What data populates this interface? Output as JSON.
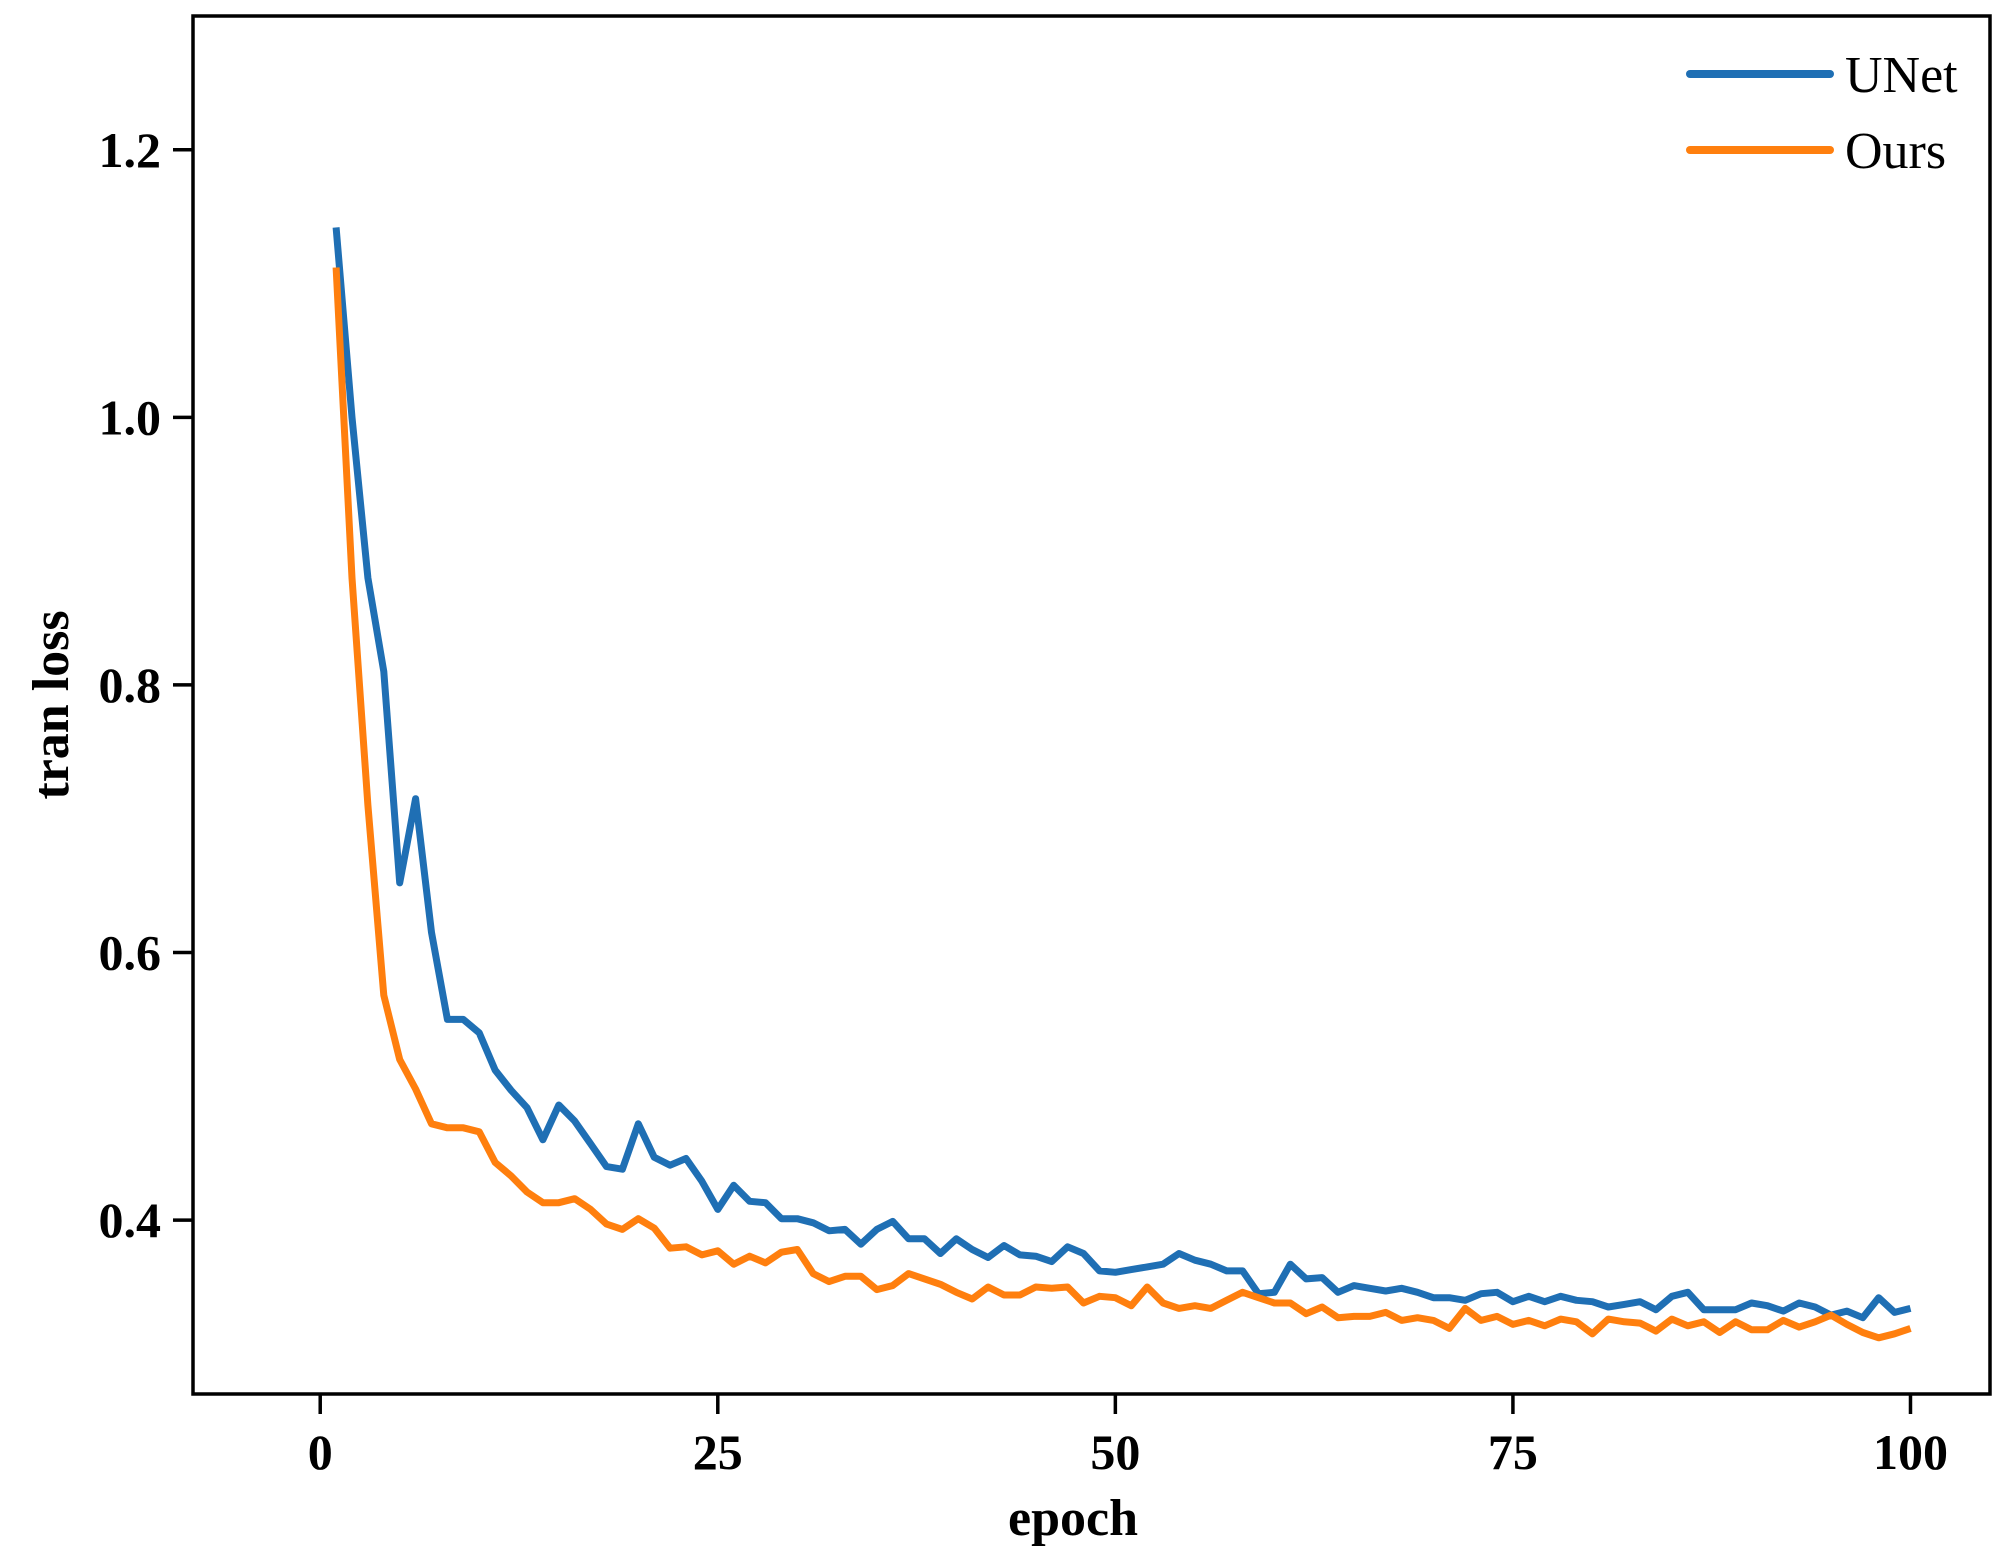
{
  "chart_data": {
    "type": "line",
    "xlabel": "epoch",
    "ylabel": "tran loss",
    "xlim": [
      -8,
      105
    ],
    "ylim": [
      0.27,
      1.3
    ],
    "xticks": [
      0,
      25,
      50,
      75,
      100
    ],
    "xtick_labels": [
      "0",
      "25",
      "50",
      "75",
      "100"
    ],
    "yticks": [
      0.4,
      0.6,
      0.8,
      1.0,
      1.2
    ],
    "ytick_labels": [
      "0.4",
      "0.6",
      "0.8",
      "1.0",
      "1.2"
    ],
    "grid": false,
    "legend": "top-right",
    "x": [
      1,
      2,
      3,
      4,
      5,
      6,
      7,
      8,
      9,
      10,
      11,
      12,
      13,
      14,
      15,
      16,
      17,
      18,
      19,
      20,
      21,
      22,
      23,
      24,
      25,
      26,
      27,
      28,
      29,
      30,
      31,
      32,
      33,
      34,
      35,
      36,
      37,
      38,
      39,
      40,
      41,
      42,
      43,
      44,
      45,
      46,
      47,
      48,
      49,
      50,
      51,
      52,
      53,
      54,
      55,
      56,
      57,
      58,
      59,
      60,
      61,
      62,
      63,
      64,
      65,
      66,
      67,
      68,
      69,
      70,
      71,
      72,
      73,
      74,
      75,
      76,
      77,
      78,
      79,
      80,
      81,
      82,
      83,
      84,
      85,
      86,
      87,
      88,
      89,
      90,
      91,
      92,
      93,
      94,
      95,
      96,
      97,
      98,
      99,
      100
    ],
    "series": [
      {
        "name": "UNet",
        "color": "#1f6fb4",
        "values": [
          1.142,
          1.0,
          0.88,
          0.81,
          0.652,
          0.715,
          0.615,
          0.55,
          0.55,
          0.54,
          0.512,
          0.497,
          0.484,
          0.46,
          0.486,
          0.474,
          0.457,
          0.44,
          0.438,
          0.472,
          0.447,
          0.441,
          0.446,
          0.429,
          0.408,
          0.426,
          0.414,
          0.413,
          0.401,
          0.401,
          0.398,
          0.392,
          0.393,
          0.382,
          0.393,
          0.399,
          0.386,
          0.386,
          0.375,
          0.386,
          0.378,
          0.372,
          0.381,
          0.374,
          0.373,
          0.369,
          0.38,
          0.375,
          0.362,
          0.361,
          0.363,
          0.365,
          0.367,
          0.375,
          0.37,
          0.367,
          0.362,
          0.362,
          0.345,
          0.346,
          0.367,
          0.356,
          0.357,
          0.346,
          0.351,
          0.349,
          0.347,
          0.349,
          0.346,
          0.342,
          0.342,
          0.34,
          0.345,
          0.346,
          0.339,
          0.343,
          0.339,
          0.343,
          0.34,
          0.339,
          0.335,
          0.337,
          0.339,
          0.333,
          0.343,
          0.346,
          0.333,
          0.333,
          0.333,
          0.338,
          0.336,
          0.332,
          0.338,
          0.335,
          0.329,
          0.332,
          0.327,
          0.342,
          0.331,
          0.334
        ]
      },
      {
        "name": "Ours",
        "color": "#ff7f0e",
        "values": [
          1.112,
          0.88,
          0.71,
          0.568,
          0.52,
          0.498,
          0.472,
          0.469,
          0.469,
          0.466,
          0.443,
          0.433,
          0.421,
          0.413,
          0.413,
          0.416,
          0.408,
          0.397,
          0.393,
          0.401,
          0.394,
          0.379,
          0.38,
          0.374,
          0.377,
          0.367,
          0.373,
          0.368,
          0.376,
          0.378,
          0.36,
          0.354,
          0.358,
          0.358,
          0.348,
          0.351,
          0.36,
          0.356,
          0.352,
          0.346,
          0.341,
          0.35,
          0.344,
          0.344,
          0.35,
          0.349,
          0.35,
          0.338,
          0.343,
          0.342,
          0.336,
          0.35,
          0.338,
          0.334,
          0.336,
          0.334,
          0.34,
          0.346,
          0.342,
          0.338,
          0.338,
          0.33,
          0.335,
          0.327,
          0.328,
          0.328,
          0.331,
          0.325,
          0.327,
          0.325,
          0.319,
          0.334,
          0.325,
          0.328,
          0.322,
          0.325,
          0.321,
          0.326,
          0.324,
          0.315,
          0.326,
          0.324,
          0.323,
          0.317,
          0.326,
          0.321,
          0.324,
          0.316,
          0.324,
          0.318,
          0.318,
          0.325,
          0.32,
          0.324,
          0.329,
          0.322,
          0.316,
          0.312,
          0.315,
          0.319
        ]
      }
    ]
  }
}
